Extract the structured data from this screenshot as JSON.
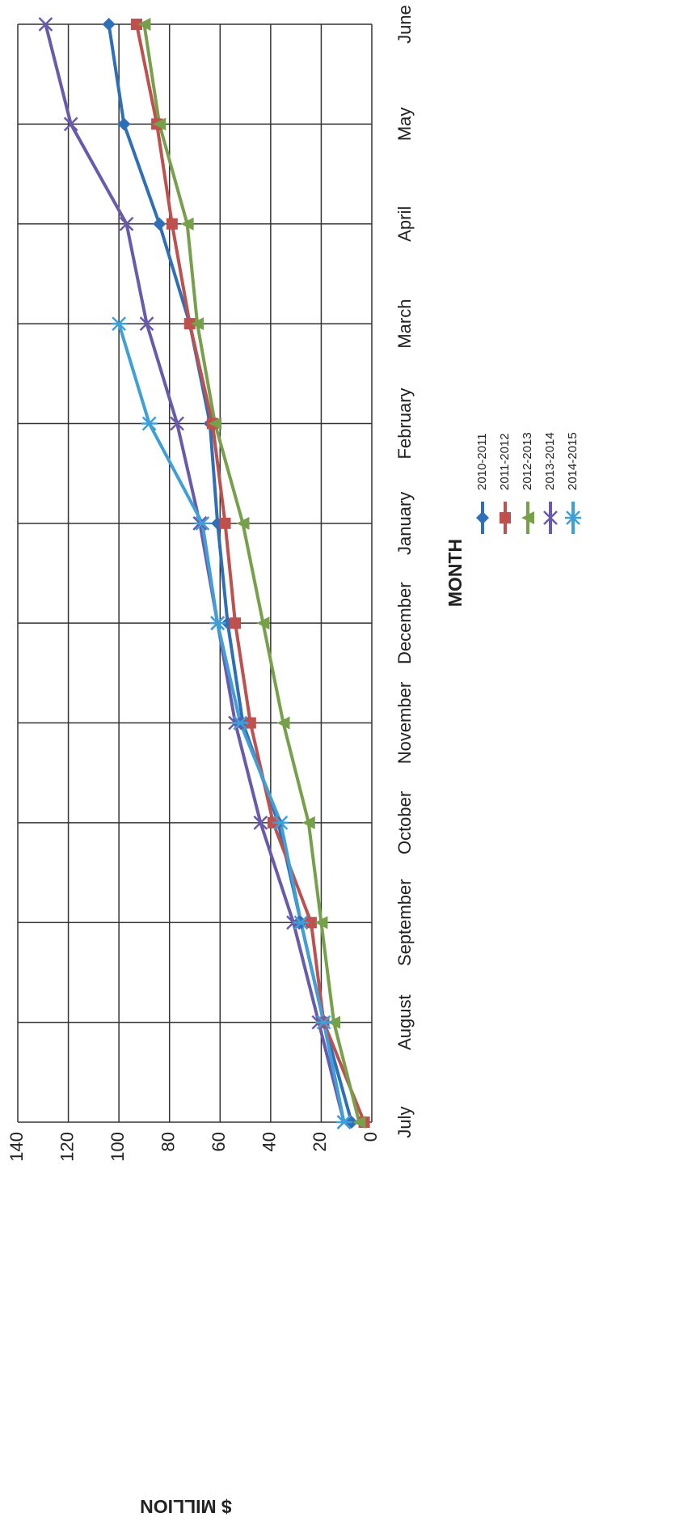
{
  "chart_data": {
    "type": "line",
    "x_label": "MONTH",
    "y_label": "$ MILLION",
    "categories": [
      "July",
      "August",
      "September",
      "October",
      "November",
      "December",
      "January",
      "February",
      "March",
      "April",
      "May",
      "June"
    ],
    "series": [
      {
        "name": "2010-2011",
        "color": "#2e6fba",
        "values": [
          8,
          19,
          28,
          37,
          51,
          57,
          61,
          64,
          72,
          84,
          98,
          104
        ]
      },
      {
        "name": "2011-2012",
        "color": "#c0504d",
        "values": [
          3,
          19,
          24,
          39,
          48,
          54,
          58,
          63,
          72,
          79,
          85,
          93
        ]
      },
      {
        "name": "2012-2013",
        "color": "#77a04a",
        "values": [
          5,
          15,
          20,
          25,
          35,
          43,
          51,
          62,
          69,
          73,
          84,
          90
        ]
      },
      {
        "name": "2013-2014",
        "color": "#6a5aae",
        "values": [
          11,
          21,
          31,
          44,
          54,
          61,
          68,
          77,
          89,
          97,
          119,
          129
        ]
      },
      {
        "name": "2014-2015",
        "color": "#3fa0d8",
        "values": [
          11,
          19,
          28,
          36,
          52,
          61,
          67,
          88,
          100,
          null,
          null,
          null
        ]
      }
    ],
    "ylim": [
      0,
      140
    ],
    "yticks": [
      0,
      20,
      40,
      60,
      80,
      100,
      120,
      140
    ],
    "grid": true
  }
}
